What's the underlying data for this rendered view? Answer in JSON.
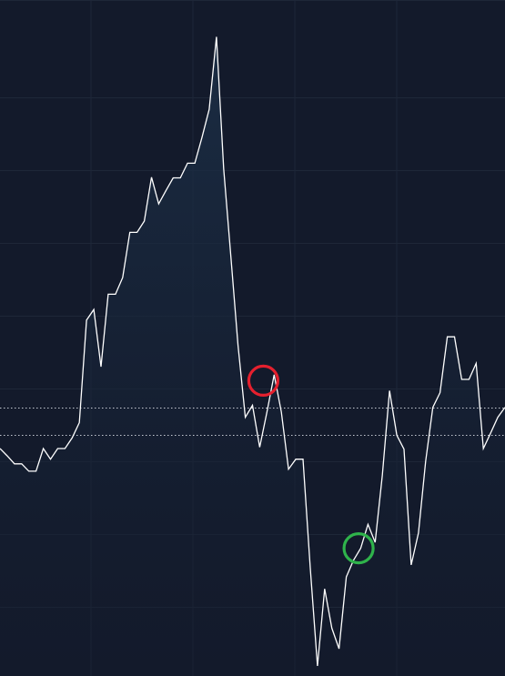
{
  "chart_data": {
    "type": "area",
    "title": "",
    "xlabel": "",
    "ylabel": "",
    "grid": true,
    "legend": "none",
    "xlim": [
      0,
      70
    ],
    "ylim": [
      0,
      100
    ],
    "x": [
      0,
      1,
      2,
      3,
      4,
      5,
      6,
      7,
      8,
      9,
      10,
      11,
      12,
      13,
      14,
      15,
      16,
      17,
      18,
      19,
      20,
      21,
      22,
      23,
      24,
      25,
      26,
      27,
      28,
      29,
      30,
      31,
      32,
      33,
      34,
      35,
      36,
      37,
      38,
      39,
      40,
      41,
      42,
      43,
      44,
      45,
      46,
      47,
      48,
      49,
      50,
      51,
      52,
      53,
      54,
      55,
      56,
      57,
      58,
      59,
      60,
      61,
      62,
      63,
      64,
      65,
      66,
      67,
      68,
      69,
      70
    ],
    "series": [
      {
        "values": [
          34.2,
          33.1,
          31.9,
          31.9,
          30.8,
          30.8,
          34.2,
          32.6,
          34.2,
          34.2,
          35.8,
          38.1,
          53.5,
          55.1,
          46.5,
          57.4,
          57.4,
          59.9,
          66.7,
          66.7,
          68.4,
          75.0,
          71.0,
          73.0,
          74.9,
          74.9,
          77.1,
          77.1,
          81.0,
          85.2,
          96.1,
          76.3,
          63.1,
          49.7,
          38.9,
          40.7,
          34.4,
          39.7,
          45.3,
          39.7,
          31.1,
          32.6,
          32.6,
          16.4,
          1.5,
          13.1,
          7.2,
          4.1,
          14.9,
          17.4,
          19.2,
          22.8,
          20.1,
          30.2,
          42.9,
          36.2,
          34.1,
          16.7,
          21.5,
          32.3,
          40.4,
          42.6,
          51.0,
          51.0,
          44.6,
          44.6,
          47.0,
          34.2,
          36.5,
          38.9,
          40.4
        ]
      }
    ],
    "reference_lines": [
      {
        "y": 40.4
      },
      {
        "y": 36.2
      }
    ],
    "annotations": [
      {
        "marker": "circle",
        "color": "#e5202e",
        "x": 36.5,
        "y": 44.4
      },
      {
        "marker": "circle",
        "color": "#2fb34b",
        "x": 49.7,
        "y": 19.2
      }
    ],
    "colors": {
      "background": "#131a2b",
      "grid": "#1e2738",
      "line": "#ffffff",
      "area_top": "#1c3048",
      "reference": "#d7dbe3"
    }
  }
}
